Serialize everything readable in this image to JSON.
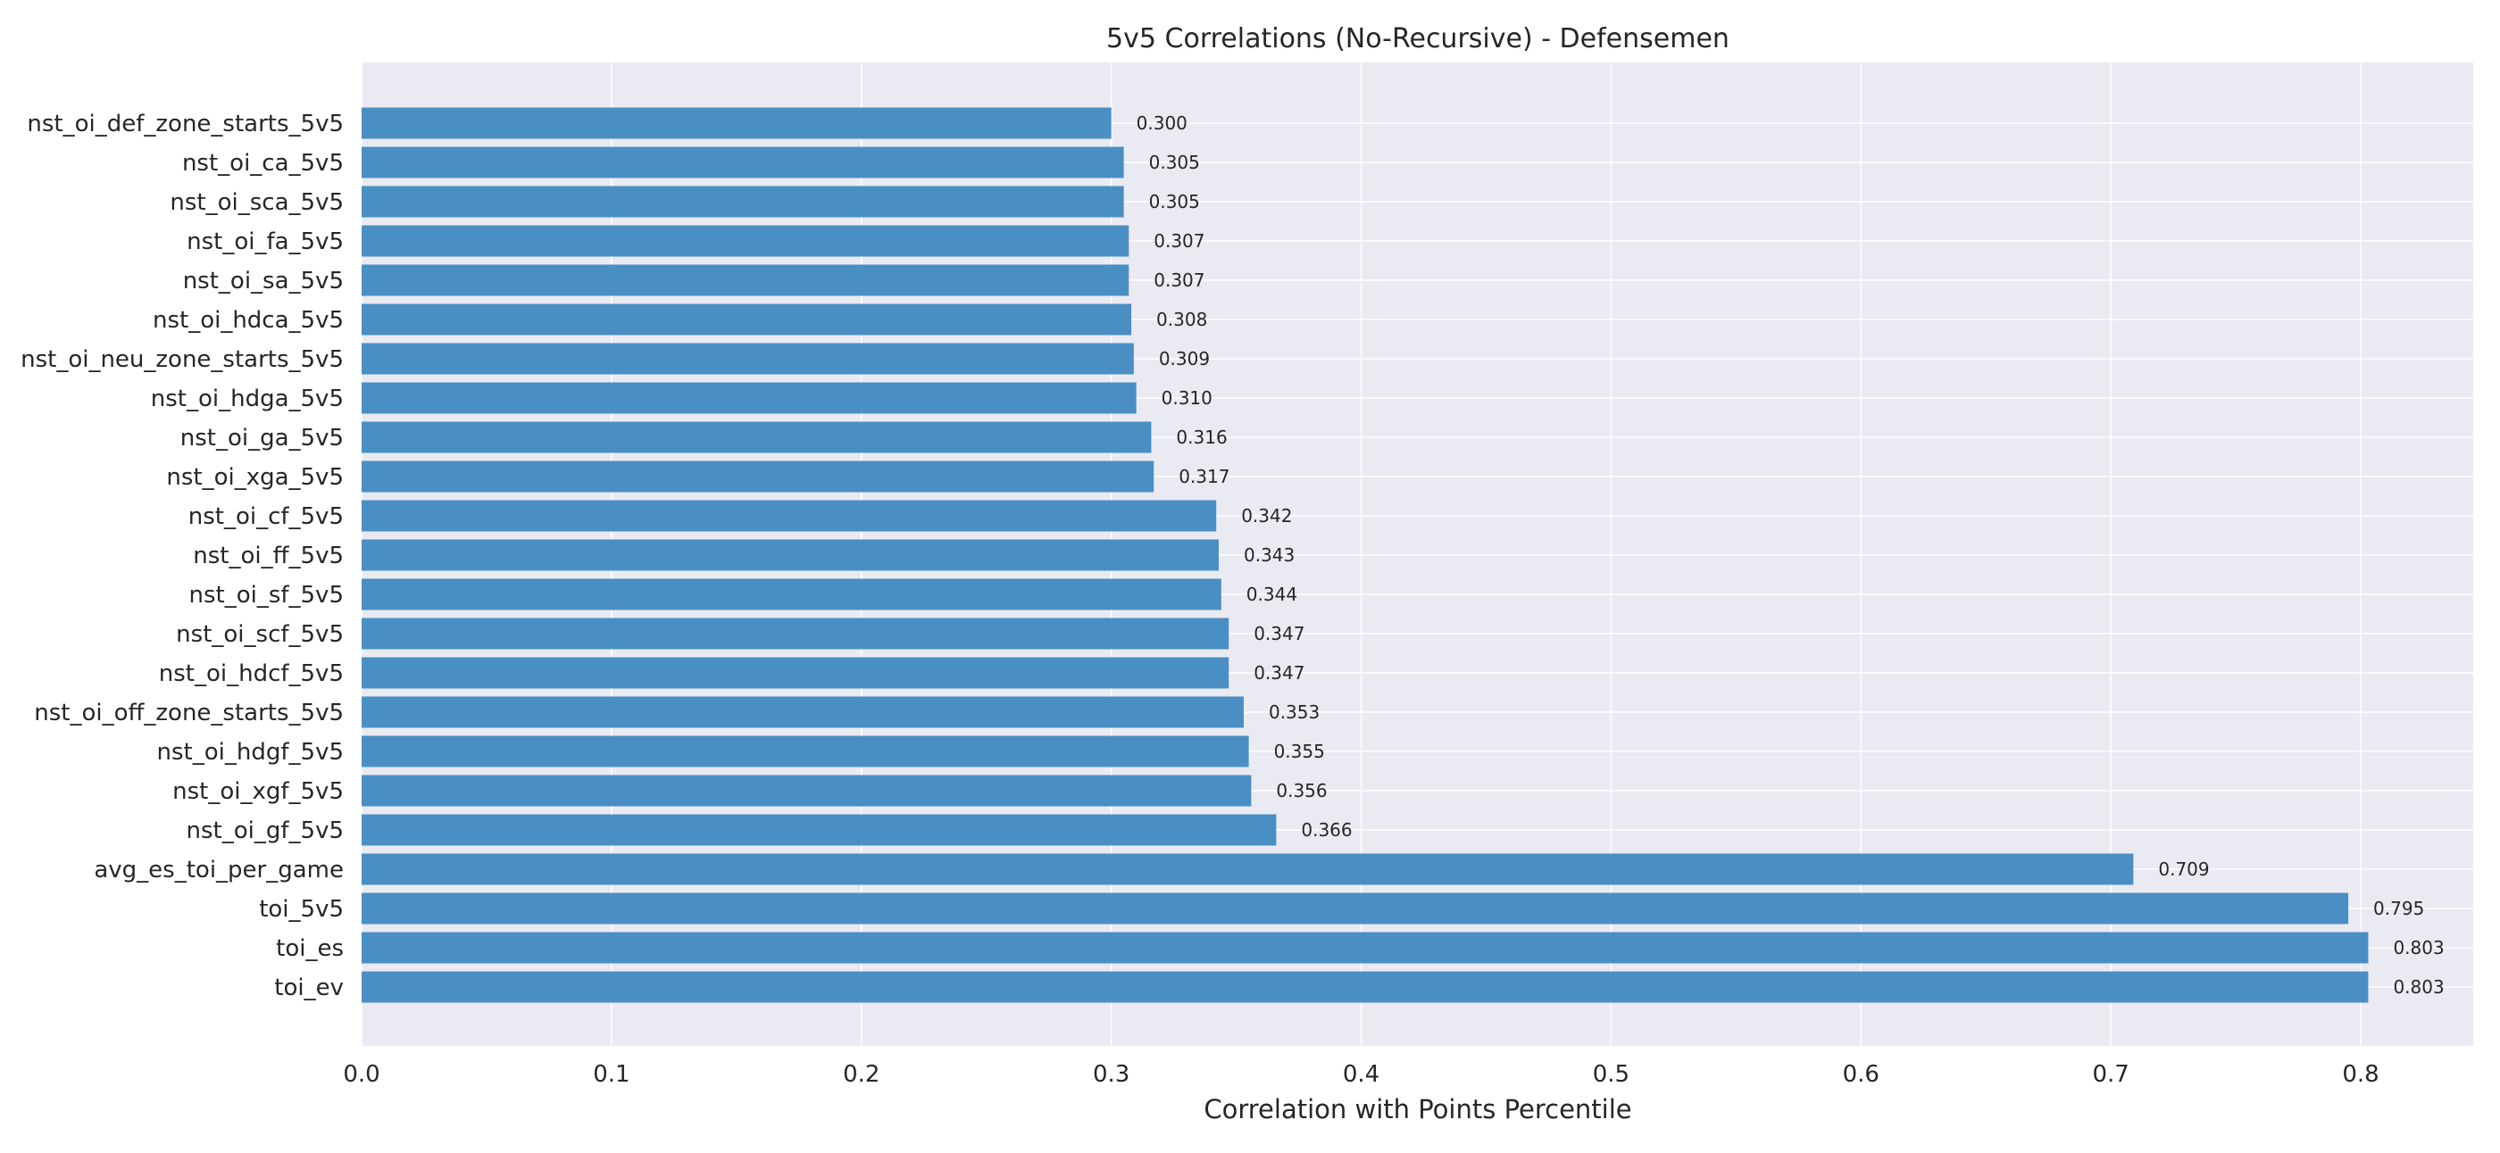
{
  "chart_data": {
    "type": "bar",
    "orientation": "horizontal",
    "title": "5v5 Correlations (No-Recursive) - Defensemen",
    "xlabel": "Correlation with Points Percentile",
    "ylabel": "",
    "xlim": [
      0,
      0.845
    ],
    "xticks": [
      0.0,
      0.1,
      0.2,
      0.3,
      0.4,
      0.5,
      0.6,
      0.7,
      0.8
    ],
    "xtick_labels": [
      "0.0",
      "0.1",
      "0.2",
      "0.3",
      "0.4",
      "0.5",
      "0.6",
      "0.7",
      "0.8"
    ],
    "grid": true,
    "bar_color": "#4a8fc3",
    "plot_background": "#eaeaf2",
    "categories": [
      "nst_oi_def_zone_starts_5v5",
      "nst_oi_ca_5v5",
      "nst_oi_sca_5v5",
      "nst_oi_fa_5v5",
      "nst_oi_sa_5v5",
      "nst_oi_hdca_5v5",
      "nst_oi_neu_zone_starts_5v5",
      "nst_oi_hdga_5v5",
      "nst_oi_ga_5v5",
      "nst_oi_xga_5v5",
      "nst_oi_cf_5v5",
      "nst_oi_ff_5v5",
      "nst_oi_sf_5v5",
      "nst_oi_scf_5v5",
      "nst_oi_hdcf_5v5",
      "nst_oi_off_zone_starts_5v5",
      "nst_oi_hdgf_5v5",
      "nst_oi_xgf_5v5",
      "nst_oi_gf_5v5",
      "avg_es_toi_per_game",
      "toi_5v5",
      "toi_es",
      "toi_ev"
    ],
    "values": [
      0.3,
      0.305,
      0.305,
      0.307,
      0.307,
      0.308,
      0.309,
      0.31,
      0.316,
      0.317,
      0.342,
      0.343,
      0.344,
      0.347,
      0.347,
      0.353,
      0.355,
      0.356,
      0.366,
      0.709,
      0.795,
      0.803,
      0.803
    ],
    "value_labels": [
      "0.300",
      "0.305",
      "0.305",
      "0.307",
      "0.307",
      "0.308",
      "0.309",
      "0.310",
      "0.316",
      "0.317",
      "0.342",
      "0.343",
      "0.344",
      "0.347",
      "0.347",
      "0.353",
      "0.355",
      "0.356",
      "0.366",
      "0.709",
      "0.795",
      "0.803",
      "0.803"
    ]
  }
}
